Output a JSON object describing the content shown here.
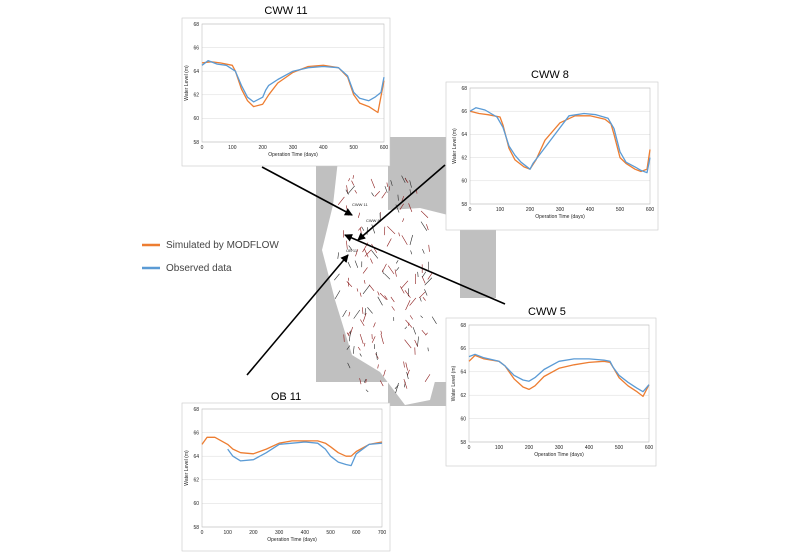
{
  "legend": {
    "simulated_label": "Simulated by MODFLOW",
    "observed_label": "Observed data",
    "simulated_color": "#ED7D31",
    "observed_color": "#5B9BD5"
  },
  "chart_data": [
    {
      "type": "line",
      "title": "CWW 11",
      "xlabel": "Operation Time (days)",
      "ylabel": "Water Level (m)",
      "xlim": [
        0,
        600
      ],
      "ylim": [
        58,
        68
      ],
      "xticks": [
        0,
        100,
        200,
        300,
        400,
        500,
        600
      ],
      "yticks": [
        58,
        60,
        62,
        64,
        66,
        68
      ],
      "series": [
        {
          "name": "Simulated by MODFLOW",
          "color": "#ED7D31",
          "x": [
            0,
            30,
            60,
            100,
            110,
            130,
            150,
            170,
            200,
            220,
            250,
            300,
            350,
            400,
            450,
            480,
            500,
            520,
            550,
            580,
            600
          ],
          "y": [
            64.7,
            64.8,
            64.7,
            64.5,
            64.0,
            62.5,
            61.5,
            61.0,
            61.2,
            62.0,
            63.0,
            63.9,
            64.4,
            64.5,
            64.3,
            63.5,
            62.0,
            61.3,
            61.0,
            60.5,
            63.2
          ]
        },
        {
          "name": "Observed data",
          "color": "#5B9BD5",
          "x": [
            0,
            20,
            50,
            80,
            110,
            130,
            150,
            170,
            200,
            210,
            220,
            250,
            300,
            350,
            400,
            450,
            480,
            500,
            520,
            550,
            570,
            590,
            600
          ],
          "y": [
            64.5,
            64.9,
            64.6,
            64.5,
            64.0,
            62.8,
            61.8,
            61.4,
            61.8,
            62.4,
            62.8,
            63.3,
            64.0,
            64.3,
            64.4,
            64.3,
            63.6,
            62.2,
            61.7,
            61.5,
            61.8,
            62.2,
            63.5
          ]
        }
      ]
    },
    {
      "type": "line",
      "title": "CWW 8",
      "xlabel": "Operation Time (days)",
      "ylabel": "Water Level (m)",
      "xlim": [
        0,
        600
      ],
      "ylim": [
        58,
        68
      ],
      "xticks": [
        0,
        100,
        200,
        300,
        400,
        500,
        600
      ],
      "yticks": [
        58,
        60,
        62,
        64,
        66,
        68
      ],
      "series": [
        {
          "name": "Simulated by MODFLOW",
          "color": "#ED7D31",
          "x": [
            0,
            30,
            60,
            100,
            110,
            130,
            150,
            180,
            200,
            220,
            250,
            300,
            350,
            400,
            450,
            470,
            480,
            500,
            520,
            550,
            570,
            590,
            600
          ],
          "y": [
            66.0,
            65.8,
            65.7,
            65.5,
            64.8,
            62.8,
            61.8,
            61.2,
            61.0,
            61.8,
            63.5,
            65.0,
            65.6,
            65.6,
            65.3,
            64.9,
            64.0,
            62.0,
            61.5,
            61.0,
            60.8,
            61.0,
            62.7
          ]
        },
        {
          "name": "Observed data",
          "color": "#5B9BD5",
          "x": [
            0,
            20,
            50,
            90,
            110,
            130,
            150,
            170,
            200,
            210,
            330,
            380,
            420,
            460,
            480,
            500,
            520,
            550,
            570,
            590,
            600
          ],
          "y": [
            66.0,
            66.3,
            66.1,
            65.5,
            64.6,
            63.0,
            62.2,
            61.6,
            61.0,
            61.5,
            65.6,
            65.8,
            65.7,
            65.4,
            64.5,
            62.5,
            61.6,
            61.2,
            60.9,
            60.7,
            62.0
          ]
        }
      ]
    },
    {
      "type": "line",
      "title": "CWW 5",
      "xlabel": "Operation Time (days)",
      "ylabel": "Water Level (m)",
      "xlim": [
        0,
        600
      ],
      "ylim": [
        58,
        68
      ],
      "xticks": [
        0,
        100,
        200,
        300,
        400,
        500,
        600
      ],
      "yticks": [
        58,
        60,
        62,
        64,
        66,
        68
      ],
      "series": [
        {
          "name": "Simulated by MODFLOW",
          "color": "#ED7D31",
          "x": [
            0,
            20,
            50,
            100,
            120,
            150,
            180,
            200,
            220,
            250,
            300,
            350,
            400,
            450,
            470,
            480,
            500,
            530,
            560,
            580,
            600
          ],
          "y": [
            64.9,
            65.4,
            65.1,
            64.9,
            64.5,
            63.4,
            62.7,
            62.5,
            62.8,
            63.6,
            64.3,
            64.6,
            64.8,
            64.9,
            64.8,
            64.4,
            63.5,
            62.8,
            62.3,
            61.9,
            62.9
          ]
        },
        {
          "name": "Observed data",
          "color": "#5B9BD5",
          "x": [
            0,
            20,
            50,
            100,
            120,
            150,
            180,
            200,
            220,
            250,
            300,
            350,
            400,
            450,
            470,
            480,
            500,
            530,
            560,
            580,
            600
          ],
          "y": [
            65.3,
            65.5,
            65.2,
            64.9,
            64.5,
            63.7,
            63.3,
            63.2,
            63.5,
            64.2,
            64.9,
            65.1,
            65.1,
            65.0,
            64.9,
            64.4,
            63.7,
            63.1,
            62.6,
            62.3,
            62.9
          ]
        }
      ]
    },
    {
      "type": "line",
      "title": "OB 11",
      "xlabel": "Operation Time (days)",
      "ylabel": "Water Level (m)",
      "xlim": [
        0,
        700
      ],
      "ylim": [
        58,
        68
      ],
      "xticks": [
        0,
        100,
        200,
        300,
        400,
        500,
        600,
        700
      ],
      "yticks": [
        58,
        60,
        62,
        64,
        66,
        68
      ],
      "series": [
        {
          "name": "Simulated by MODFLOW",
          "color": "#ED7D31",
          "x": [
            0,
            20,
            50,
            100,
            120,
            150,
            200,
            250,
            300,
            350,
            400,
            450,
            480,
            500,
            530,
            560,
            580,
            600,
            650,
            700
          ],
          "y": [
            65.0,
            65.6,
            65.6,
            65.0,
            64.6,
            64.3,
            64.2,
            64.6,
            65.1,
            65.3,
            65.3,
            65.3,
            65.1,
            64.8,
            64.3,
            64.0,
            64.0,
            64.4,
            65.0,
            65.2
          ]
        },
        {
          "name": "Observed data",
          "color": "#5B9BD5",
          "x": [
            100,
            120,
            150,
            200,
            250,
            300,
            350,
            400,
            450,
            480,
            500,
            530,
            560,
            580,
            600,
            650,
            700
          ],
          "y": [
            64.6,
            64.0,
            63.6,
            63.7,
            64.3,
            65.0,
            65.1,
            65.2,
            65.1,
            64.6,
            64.0,
            63.5,
            63.3,
            63.2,
            64.2,
            65.0,
            65.1
          ]
        }
      ]
    }
  ]
}
